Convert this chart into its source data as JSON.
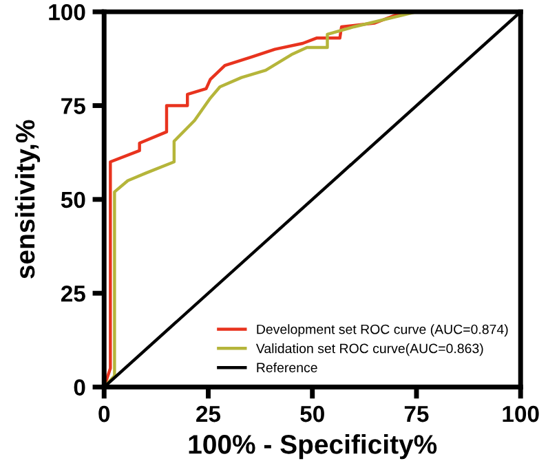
{
  "chart_data": {
    "type": "line",
    "xlabel": "100% - Specificity%",
    "ylabel": "sensitivity,%",
    "xlim": [
      0,
      100
    ],
    "ylim": [
      0,
      100
    ],
    "xticks": [
      0,
      25,
      50,
      75,
      100
    ],
    "yticks": [
      0,
      25,
      50,
      75,
      100
    ],
    "grid": false,
    "legend": "bottom right",
    "marker": "none",
    "line_style": "solid",
    "series": [
      {
        "name": "Development set ROC curve (AUC=0.874)",
        "color": "#e8331e",
        "x": [
          0,
          1.5,
          1.5,
          8.5,
          8.5,
          15,
          15,
          20,
          20,
          24.5,
          25.5,
          29,
          35.5,
          41,
          47.7,
          51,
          56.6,
          57,
          65,
          72,
          100
        ],
        "values": [
          0,
          5,
          60,
          63,
          65,
          68,
          75,
          75,
          78,
          79.5,
          82,
          85.7,
          88,
          90,
          91.6,
          93,
          93,
          96,
          97,
          100,
          100
        ]
      },
      {
        "name": "Validation set ROC curve(AUC=0.863)",
        "color": "#b5b53a",
        "x": [
          0,
          2.5,
          2.5,
          5.7,
          10,
          16.8,
          16.8,
          21.7,
          25.5,
          27.8,
          33,
          38.8,
          45,
          48.7,
          53.6,
          53.6,
          60,
          75,
          100
        ],
        "values": [
          0,
          3,
          52,
          55,
          57,
          60,
          65.5,
          71,
          77,
          80,
          82.5,
          84.4,
          88.6,
          90.5,
          90.5,
          94,
          96,
          100,
          100
        ]
      },
      {
        "name": "Reference",
        "color": "#000000",
        "x": [
          0,
          100
        ],
        "values": [
          0,
          100
        ]
      }
    ]
  }
}
